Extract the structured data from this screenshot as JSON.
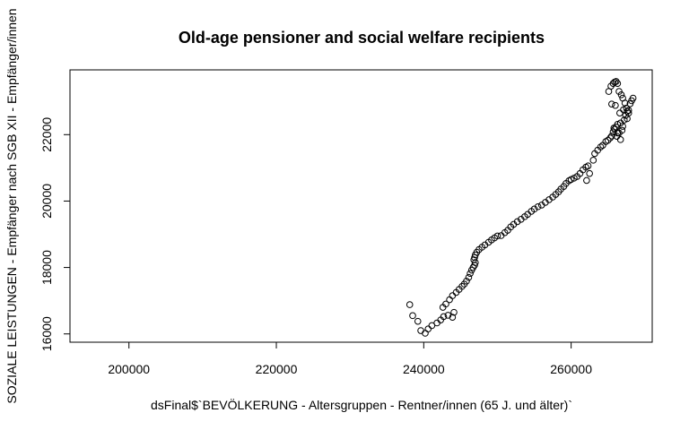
{
  "chart_data": {
    "type": "scatter",
    "title": "Old-age pensioner and social welfare recipients",
    "xlabel": "dsFinal$`BEVÖLKERUNG - Altersgruppen - Rentner/innen (65 J. und älter)`",
    "ylabel": "SOZIALE LEISTUNGEN - Empfänger nach SGB XII - Empfänger/innen",
    "xlim": [
      192000,
      271000
    ],
    "ylim": [
      15750,
      23950
    ],
    "x_ticks": [
      200000,
      220000,
      240000,
      260000
    ],
    "y_ticks": [
      16000,
      18000,
      20000,
      22000
    ],
    "x_tick_labels": [
      "200000",
      "220000",
      "240000",
      "260000"
    ],
    "y_tick_labels": [
      "16000",
      "18000",
      "20000",
      "22000"
    ],
    "grid": false,
    "marker": "open-circle",
    "points": [
      [
        238100,
        16880
      ],
      [
        238500,
        16550
      ],
      [
        239200,
        16380
      ],
      [
        239600,
        16100
      ],
      [
        240200,
        16020
      ],
      [
        240600,
        16150
      ],
      [
        241100,
        16250
      ],
      [
        241800,
        16330
      ],
      [
        242300,
        16420
      ],
      [
        242700,
        16520
      ],
      [
        243300,
        16560
      ],
      [
        243900,
        16500
      ],
      [
        244100,
        16650
      ],
      [
        242600,
        16800
      ],
      [
        243000,
        16900
      ],
      [
        243500,
        17030
      ],
      [
        243900,
        17150
      ],
      [
        244400,
        17250
      ],
      [
        244800,
        17340
      ],
      [
        245200,
        17430
      ],
      [
        245500,
        17500
      ],
      [
        245800,
        17590
      ],
      [
        246100,
        17700
      ],
      [
        246300,
        17820
      ],
      [
        246500,
        17920
      ],
      [
        246700,
        18000
      ],
      [
        246900,
        18070
      ],
      [
        247000,
        18150
      ],
      [
        246800,
        18230
      ],
      [
        246900,
        18300
      ],
      [
        247000,
        18380
      ],
      [
        247200,
        18460
      ],
      [
        247500,
        18540
      ],
      [
        247900,
        18610
      ],
      [
        248300,
        18680
      ],
      [
        248800,
        18760
      ],
      [
        249200,
        18830
      ],
      [
        249600,
        18890
      ],
      [
        250000,
        18950
      ],
      [
        250500,
        18960
      ],
      [
        251000,
        19050
      ],
      [
        251400,
        19120
      ],
      [
        251800,
        19220
      ],
      [
        252200,
        19300
      ],
      [
        252700,
        19380
      ],
      [
        253200,
        19450
      ],
      [
        253700,
        19530
      ],
      [
        254100,
        19600
      ],
      [
        254600,
        19690
      ],
      [
        255000,
        19760
      ],
      [
        255500,
        19830
      ],
      [
        256000,
        19880
      ],
      [
        256500,
        19960
      ],
      [
        257000,
        20040
      ],
      [
        257500,
        20120
      ],
      [
        257900,
        20200
      ],
      [
        258300,
        20280
      ],
      [
        258600,
        20360
      ],
      [
        259000,
        20440
      ],
      [
        259300,
        20530
      ],
      [
        259700,
        20610
      ],
      [
        260000,
        20650
      ],
      [
        260400,
        20690
      ],
      [
        260800,
        20740
      ],
      [
        261200,
        20830
      ],
      [
        261600,
        20940
      ],
      [
        262000,
        21020
      ],
      [
        262300,
        21060
      ],
      [
        262100,
        20620
      ],
      [
        262500,
        20830
      ],
      [
        263000,
        21230
      ],
      [
        263200,
        21430
      ],
      [
        263600,
        21530
      ],
      [
        264000,
        21630
      ],
      [
        264300,
        21680
      ],
      [
        264700,
        21790
      ],
      [
        265000,
        21830
      ],
      [
        265300,
        21900
      ],
      [
        265500,
        21960
      ],
      [
        265700,
        22080
      ],
      [
        265900,
        22160
      ],
      [
        266100,
        22230
      ],
      [
        266300,
        22310
      ],
      [
        266500,
        22050
      ],
      [
        266700,
        21850
      ],
      [
        266900,
        22130
      ],
      [
        267000,
        22250
      ],
      [
        267200,
        22440
      ],
      [
        267400,
        22580
      ],
      [
        267600,
        22700
      ],
      [
        267800,
        22730
      ],
      [
        268000,
        22930
      ],
      [
        268200,
        23020
      ],
      [
        268400,
        23100
      ],
      [
        265100,
        23300
      ],
      [
        265400,
        23460
      ],
      [
        265700,
        23540
      ],
      [
        265900,
        23580
      ],
      [
        266100,
        23600
      ],
      [
        266300,
        23540
      ],
      [
        266500,
        23300
      ],
      [
        266800,
        23200
      ],
      [
        267000,
        23100
      ],
      [
        267300,
        22950
      ],
      [
        267100,
        22750
      ],
      [
        266000,
        22880
      ],
      [
        265500,
        22920
      ],
      [
        267600,
        22480
      ],
      [
        266300,
        22050
      ],
      [
        266700,
        22350
      ],
      [
        267800,
        22650
      ],
      [
        265800,
        22200
      ],
      [
        266200,
        21950
      ],
      [
        267500,
        22800
      ],
      [
        266600,
        22650
      ]
    ]
  }
}
